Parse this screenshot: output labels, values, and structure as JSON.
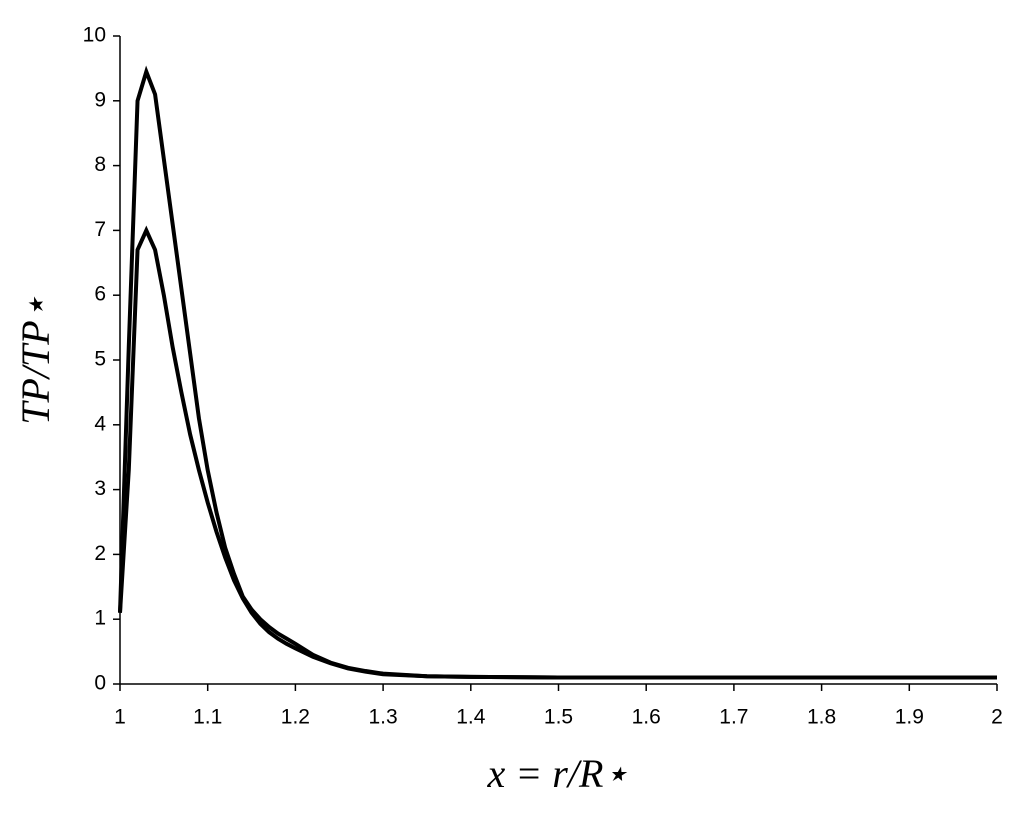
{
  "chart_data": {
    "type": "line",
    "xlabel": "x = r/R⋆",
    "ylabel": "TP/TP⋆",
    "x": [
      1,
      1.01,
      1.02,
      1.03,
      1.04,
      1.05,
      1.06,
      1.07,
      1.08,
      1.09,
      1.1,
      1.11,
      1.12,
      1.13,
      1.14,
      1.15,
      1.16,
      1.17,
      1.18,
      1.19,
      1.2,
      1.22,
      1.24,
      1.26,
      1.28,
      1.3,
      1.35,
      1.4,
      1.5,
      1.6,
      1.7,
      1.8,
      1.9,
      2
    ],
    "series": [
      {
        "color": "#000000",
        "values": [
          1.1,
          5.2,
          9.0,
          9.45,
          9.1,
          8.1,
          7.1,
          6.1,
          5.1,
          4.1,
          3.3,
          2.65,
          2.1,
          1.7,
          1.35,
          1.15,
          1.0,
          0.88,
          0.78,
          0.7,
          0.62,
          0.45,
          0.33,
          0.25,
          0.2,
          0.16,
          0.12,
          0.11,
          0.1,
          0.1,
          0.1,
          0.1,
          0.1,
          0.1
        ]
      },
      {
        "color": "#000000",
        "values": [
          1.1,
          3.3,
          6.7,
          7.0,
          6.7,
          6.0,
          5.2,
          4.5,
          3.85,
          3.3,
          2.8,
          2.35,
          1.95,
          1.6,
          1.32,
          1.1,
          0.93,
          0.8,
          0.7,
          0.62,
          0.55,
          0.42,
          0.32,
          0.24,
          0.19,
          0.15,
          0.12,
          0.11,
          0.1,
          0.1,
          0.1,
          0.1,
          0.1,
          0.1
        ]
      }
    ],
    "xlim": [
      1,
      2
    ],
    "xticks": [
      1,
      1.1,
      1.2,
      1.3,
      1.4,
      1.5,
      1.6,
      1.7,
      1.8,
      1.9,
      2
    ],
    "ylim": [
      0,
      10
    ],
    "yticks": [
      0,
      1,
      2,
      3,
      4,
      5,
      6,
      7,
      8,
      9,
      10
    ],
    "grid": false
  }
}
